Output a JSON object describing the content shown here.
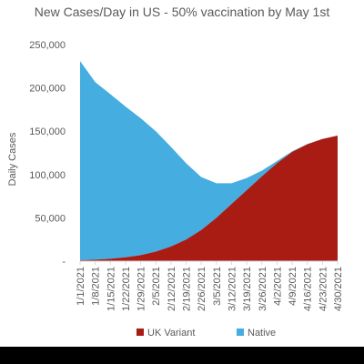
{
  "chart_data": {
    "type": "area",
    "stacked": true,
    "title": "New Cases/Day in US - 50% vaccination by May 1st",
    "ylabel": "Daily Cases",
    "xlabel": "",
    "ylim": [
      0,
      250000
    ],
    "yticks": [
      0,
      50000,
      100000,
      150000,
      200000,
      250000
    ],
    "ytick_labels": [
      "-",
      "50,000",
      "100,000",
      "150,000",
      "200,000",
      "250,000"
    ],
    "categories": [
      "1/1/2021",
      "1/8/2021",
      "1/15/2021",
      "1/22/2021",
      "1/29/2021",
      "2/5/2021",
      "2/12/2021",
      "2/19/2021",
      "2/26/2021",
      "3/5/2021",
      "3/12/2021",
      "3/19/2021",
      "3/26/2021",
      "4/2/2021",
      "4/9/2021",
      "4/16/2021",
      "4/23/2021",
      "4/30/2021"
    ],
    "grid": false,
    "legend_position": "bottom",
    "series": [
      {
        "name": "UK Variant",
        "color": "#a81c14",
        "values": [
          1000,
          1700,
          2800,
          4500,
          7000,
          11000,
          17000,
          25000,
          36000,
          50000,
          66000,
          82000,
          98000,
          113000,
          126000,
          135000,
          141000,
          145000
        ]
      },
      {
        "name": "Native",
        "color": "#45ade0",
        "values": [
          230000,
          205000,
          190000,
          174000,
          158000,
          139000,
          115000,
          88000,
          61000,
          40000,
          24000,
          14000,
          6500,
          2500,
          900,
          300,
          100,
          0
        ]
      }
    ]
  }
}
